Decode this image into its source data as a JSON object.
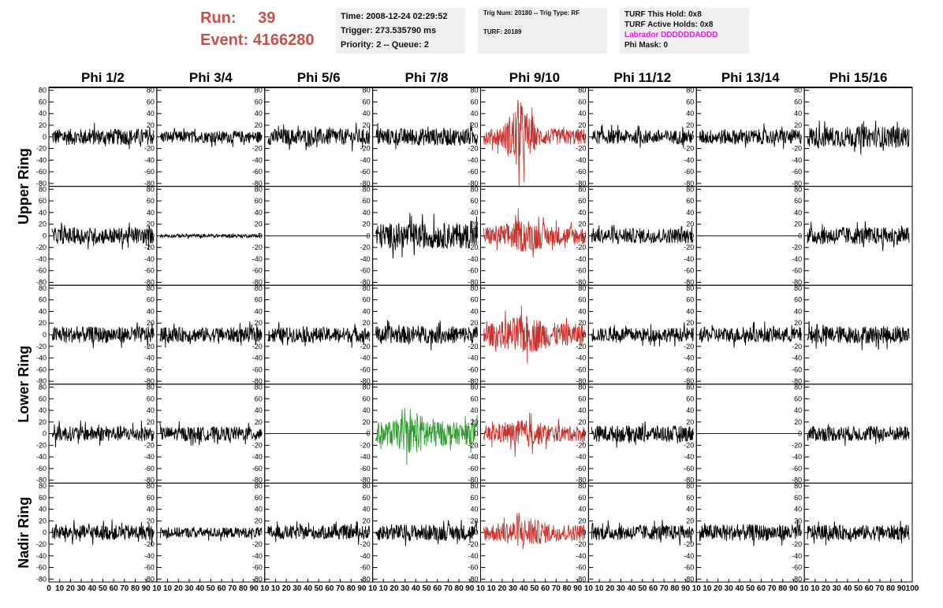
{
  "header": {
    "run_label": "Run:",
    "run_value": "39",
    "event_label": "Event:",
    "event_value": "4166280",
    "time": "Time: 2008-12-24 02:29:52",
    "trigger": "Trigger: 273.535790 ms",
    "priority": "Priority: 2 -- Queue: 2",
    "trig_num": "Trig Num: 20180 -- Trig Type: RF",
    "turf": "TURF: 20189",
    "turf_this_hold": "TURF This Hold: 0x8",
    "turf_active_holds": "TURF Active Holds: 0x8",
    "labrador": "Labrador DDDDDDADDD",
    "phi_mask": "Phi Mask: 0"
  },
  "colors": {
    "normal": "#000000",
    "triggered": "#c8322d",
    "green": "#2e9a2e",
    "labrador": "#e020e0",
    "run": "#c8504a",
    "info_bg": "#efefef"
  },
  "chart_data": {
    "type": "line",
    "columns": [
      "Phi 1/2",
      "Phi 3/4",
      "Phi 5/6",
      "Phi 7/8",
      "Phi 9/10",
      "Phi 11/12",
      "Phi 13/14",
      "Phi 15/16"
    ],
    "ring_labels": [
      "Upper Ring",
      "Lower Ring",
      "Nadir Ring"
    ],
    "x_range": [
      0,
      100
    ],
    "y_range": [
      -85,
      85
    ],
    "y_ticks": [
      80,
      60,
      40,
      20,
      0,
      -20,
      -40,
      -60,
      -80
    ],
    "x_tick_labels": [
      "0",
      "10",
      "20",
      "30",
      "40",
      "50",
      "60",
      "70",
      "80",
      "90",
      "10",
      "10",
      "20",
      "30",
      "40",
      "50",
      "60",
      "70",
      "80",
      "90",
      "10",
      "10",
      "20",
      "30",
      "40",
      "50",
      "60",
      "70",
      "80",
      "90",
      "10",
      "10",
      "20",
      "30",
      "40",
      "50",
      "60",
      "70",
      "80",
      "90",
      "10",
      "10",
      "20",
      "30",
      "40",
      "50",
      "60",
      "70",
      "80",
      "90",
      "10",
      "10",
      "20",
      "30",
      "40",
      "50",
      "60",
      "70",
      "80",
      "90",
      "10",
      "10",
      "20",
      "30",
      "40",
      "50",
      "60",
      "70",
      "80",
      "90",
      "10",
      "10",
      "20",
      "30",
      "40",
      "50",
      "60",
      "70",
      "80",
      "90",
      "100"
    ],
    "panel_amplitudes": [
      [
        14,
        10,
        14,
        15,
        28,
        12,
        13,
        18
      ],
      [
        14,
        3,
        0,
        22,
        20,
        13,
        0,
        15
      ],
      [
        14,
        13,
        13,
        15,
        24,
        12,
        13,
        15
      ],
      [
        13,
        12,
        0,
        24,
        17,
        14,
        0,
        13
      ],
      [
        13,
        9,
        12,
        14,
        18,
        13,
        14,
        13
      ]
    ],
    "panel_colors": [
      [
        "normal",
        "normal",
        "normal",
        "normal",
        "triggered",
        "normal",
        "normal",
        "normal"
      ],
      [
        "normal",
        "normal",
        "normal",
        "normal",
        "triggered",
        "normal",
        "normal",
        "normal"
      ],
      [
        "normal",
        "normal",
        "normal",
        "normal",
        "triggered",
        "normal",
        "normal",
        "normal"
      ],
      [
        "normal",
        "normal",
        "normal",
        "green",
        "triggered",
        "normal",
        "normal",
        "normal"
      ],
      [
        "normal",
        "normal",
        "normal",
        "normal",
        "triggered",
        "normal",
        "normal",
        "normal"
      ]
    ]
  }
}
